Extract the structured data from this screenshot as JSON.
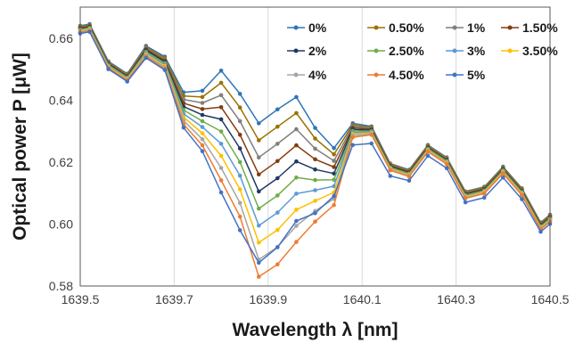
{
  "chart_data": {
    "type": "line",
    "xlabel": "Wavelength λ [nm]",
    "ylabel": "Optical power P [μW]",
    "xlim": [
      1639.5,
      1640.5
    ],
    "ylim": [
      0.58,
      0.67
    ],
    "xticks": [
      "1639.5",
      "1639.7",
      "1639.9",
      "1640.1",
      "1640.3",
      "1640.5"
    ],
    "yticks": [
      "0.58",
      "0.60",
      "0.62",
      "0.64",
      "0.66"
    ],
    "grid": "vertical",
    "legend_position": "top-right",
    "x": [
      1639.5,
      1639.52,
      1639.56,
      1639.6,
      1639.64,
      1639.68,
      1639.72,
      1639.76,
      1639.8,
      1639.84,
      1639.88,
      1639.92,
      1639.96,
      1640.0,
      1640.04,
      1640.08,
      1640.12,
      1640.16,
      1640.2,
      1640.24,
      1640.28,
      1640.32,
      1640.36,
      1640.4,
      1640.44,
      1640.48,
      1640.5
    ],
    "series": [
      {
        "name": "0%",
        "color": "#2e75b6",
        "values": [
          0.664,
          0.6645,
          0.6525,
          0.6485,
          0.6575,
          0.654,
          0.6425,
          0.643,
          0.6495,
          0.642,
          0.6325,
          0.637,
          0.641,
          0.631,
          0.6245,
          0.6325,
          0.6315,
          0.6195,
          0.6175,
          0.6255,
          0.6215,
          0.6105,
          0.612,
          0.6185,
          0.6115,
          0.6005,
          0.603
        ]
      },
      {
        "name": "0.50%",
        "color": "#997300",
        "values": [
          0.6638,
          0.6642,
          0.6522,
          0.6483,
          0.6571,
          0.6536,
          0.6413,
          0.641,
          0.6456,
          0.6376,
          0.627,
          0.6314,
          0.6358,
          0.6276,
          0.6225,
          0.632,
          0.6312,
          0.6193,
          0.6173,
          0.6253,
          0.6213,
          0.6103,
          0.6118,
          0.6183,
          0.6113,
          0.6003,
          0.6028
        ]
      },
      {
        "name": "1%",
        "color": "#7f7f7f",
        "values": [
          0.6635,
          0.664,
          0.652,
          0.648,
          0.6568,
          0.6531,
          0.6402,
          0.6391,
          0.6416,
          0.6332,
          0.6215,
          0.6259,
          0.6306,
          0.6243,
          0.6204,
          0.6315,
          0.6309,
          0.619,
          0.617,
          0.625,
          0.621,
          0.61,
          0.6115,
          0.618,
          0.611,
          0.6,
          0.6025
        ]
      },
      {
        "name": "1.50%",
        "color": "#843c0c",
        "values": [
          0.6633,
          0.6638,
          0.6518,
          0.6478,
          0.6564,
          0.6527,
          0.639,
          0.6371,
          0.6377,
          0.6288,
          0.616,
          0.6203,
          0.6254,
          0.6209,
          0.6184,
          0.631,
          0.6306,
          0.6188,
          0.6168,
          0.6248,
          0.6208,
          0.6098,
          0.6113,
          0.6178,
          0.6108,
          0.5998,
          0.6023
        ]
      },
      {
        "name": "2%",
        "color": "#203864",
        "values": [
          0.663,
          0.6635,
          0.6515,
          0.6475,
          0.656,
          0.6523,
          0.6379,
          0.6352,
          0.6338,
          0.6244,
          0.6105,
          0.6148,
          0.6202,
          0.6176,
          0.6163,
          0.6305,
          0.6303,
          0.6185,
          0.6165,
          0.6245,
          0.6205,
          0.6095,
          0.611,
          0.6175,
          0.6105,
          0.5995,
          0.602
        ]
      },
      {
        "name": "2.50%",
        "color": "#70ad47",
        "values": [
          0.6628,
          0.6633,
          0.6513,
          0.6473,
          0.6556,
          0.6519,
          0.6368,
          0.6332,
          0.6299,
          0.62,
          0.605,
          0.6092,
          0.615,
          0.6142,
          0.6143,
          0.63,
          0.63,
          0.6183,
          0.6163,
          0.6243,
          0.6203,
          0.6093,
          0.6108,
          0.6173,
          0.6103,
          0.5993,
          0.6018
        ]
      },
      {
        "name": "3%",
        "color": "#5b9bd5",
        "values": [
          0.6625,
          0.663,
          0.651,
          0.647,
          0.6552,
          0.6514,
          0.6356,
          0.6313,
          0.6259,
          0.6156,
          0.5995,
          0.6037,
          0.6098,
          0.6109,
          0.6122,
          0.6295,
          0.6297,
          0.618,
          0.616,
          0.624,
          0.62,
          0.609,
          0.6105,
          0.617,
          0.61,
          0.599,
          0.6015
        ]
      },
      {
        "name": "3.50%",
        "color": "#ffc000",
        "values": [
          0.6623,
          0.6628,
          0.6508,
          0.6468,
          0.6548,
          0.651,
          0.6345,
          0.6293,
          0.622,
          0.6112,
          0.594,
          0.5981,
          0.6046,
          0.6075,
          0.6102,
          0.629,
          0.6294,
          0.6178,
          0.6158,
          0.6238,
          0.6198,
          0.6088,
          0.6103,
          0.6168,
          0.6098,
          0.5988,
          0.6013
        ]
      },
      {
        "name": "4%",
        "color": "#a5a5a5",
        "values": [
          0.662,
          0.6625,
          0.6505,
          0.6465,
          0.6544,
          0.6506,
          0.6334,
          0.6274,
          0.6181,
          0.6068,
          0.5885,
          0.5926,
          0.5994,
          0.6042,
          0.6081,
          0.6285,
          0.6291,
          0.6175,
          0.6155,
          0.6235,
          0.6195,
          0.6085,
          0.61,
          0.6165,
          0.6095,
          0.5985,
          0.601
        ]
      },
      {
        "name": "4.50%",
        "color": "#ed7d31",
        "values": [
          0.6618,
          0.6623,
          0.6503,
          0.6463,
          0.654,
          0.6501,
          0.6322,
          0.6254,
          0.6141,
          0.6024,
          0.583,
          0.587,
          0.5942,
          0.6008,
          0.6061,
          0.628,
          0.6288,
          0.6173,
          0.6153,
          0.6233,
          0.6193,
          0.6083,
          0.6098,
          0.6163,
          0.6093,
          0.5983,
          0.6008
        ]
      },
      {
        "name": "5%",
        "color": "#4472c4",
        "values": [
          0.6615,
          0.662,
          0.65,
          0.646,
          0.6536,
          0.6497,
          0.6311,
          0.6235,
          0.6102,
          0.598,
          0.5875,
          0.5925,
          0.601,
          0.6035,
          0.609,
          0.6255,
          0.626,
          0.6155,
          0.614,
          0.622,
          0.618,
          0.607,
          0.6085,
          0.615,
          0.608,
          0.5975,
          0.6
        ]
      }
    ]
  }
}
